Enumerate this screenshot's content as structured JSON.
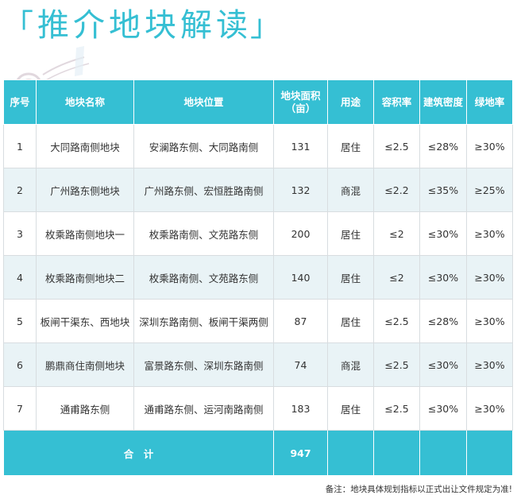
{
  "header": {
    "bracket_open": "「",
    "title": "推介地块解读",
    "bracket_close": "」"
  },
  "table": {
    "columns": [
      "序号",
      "地块名称",
      "地块位置",
      "地块面积\n（亩）",
      "用途",
      "容积率",
      "建筑密度",
      "绿地率"
    ],
    "rows": [
      [
        "1",
        "大同路南侧地块",
        "安澜路东侧、大同路南侧",
        "131",
        "居住",
        "≤2.5",
        "≤28%",
        "≥30%"
      ],
      [
        "2",
        "广州路东侧地块",
        "广州路东侧、宏恒胜路南侧",
        "132",
        "商混",
        "≤2.2",
        "≤35%",
        "≥25%"
      ],
      [
        "3",
        "枚乘路南侧地块一",
        "枚乘路南侧、文苑路东侧",
        "200",
        "居住",
        "≤2",
        "≤30%",
        "≥30%"
      ],
      [
        "4",
        "枚乘路南侧地块二",
        "枚乘路南侧、文苑路东侧",
        "140",
        "居住",
        "≤2",
        "≤30%",
        "≥30%"
      ],
      [
        "5",
        "板闸干渠东、西地块",
        "深圳东路南侧、板闸干渠两侧",
        "87",
        "居住",
        "≤2.5",
        "≤28%",
        "≥30%"
      ],
      [
        "6",
        "鹏鼎商住南侧地块",
        "富景路东侧、深圳东路南侧",
        "74",
        "商混",
        "≤2.5",
        "≤30%",
        "≥30%"
      ],
      [
        "7",
        "通甫路东侧",
        "通甫路东侧、运河南路南侧",
        "183",
        "居住",
        "≤2.5",
        "≤30%",
        "≥30%"
      ]
    ],
    "total_label": "合　计",
    "total_area": "947"
  },
  "note": "备注：地块具体规划指标以正式出让文件规定为准!",
  "colors": {
    "accent": "#35bfd3",
    "row_alt": "#e9f3f6"
  }
}
